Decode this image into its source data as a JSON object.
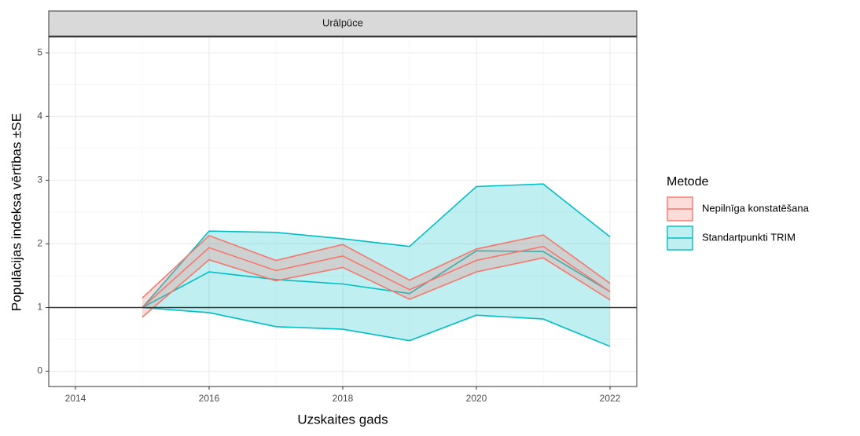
{
  "chart_data": {
    "type": "ribbon-line",
    "strip": "Urālpūce",
    "xlabel": "Uzskaites gads",
    "ylabel": "Populācijas indeksa vērtības ±SE",
    "legend_title": "Metode",
    "x": [
      2015,
      2016,
      2017,
      2018,
      2019,
      2020,
      2021,
      2022
    ],
    "series": [
      {
        "name": "Nepilnīga konstatēšana",
        "color": "#F8766D",
        "values": [
          1.0,
          1.94,
          1.58,
          1.81,
          1.28,
          1.74,
          1.96,
          1.25
        ],
        "se": [
          0.15,
          0.19,
          0.16,
          0.18,
          0.15,
          0.18,
          0.18,
          0.13
        ]
      },
      {
        "name": "Standartpunkti TRIM",
        "color": "#00BFC4",
        "values": [
          1.0,
          1.56,
          1.44,
          1.37,
          1.22,
          1.89,
          1.88,
          1.25
        ],
        "se": [
          0,
          0.64,
          0.74,
          0.71,
          0.74,
          1.01,
          1.06,
          0.86
        ]
      }
    ],
    "reference_line": 1,
    "xlim": [
      2013.6,
      2022.4
    ],
    "xticks": [
      2014,
      2016,
      2018,
      2020,
      2022
    ],
    "ylim": [
      -0.24,
      5.25
    ],
    "yticks": [
      0,
      1,
      2,
      3,
      4,
      5
    ],
    "grid": true
  }
}
